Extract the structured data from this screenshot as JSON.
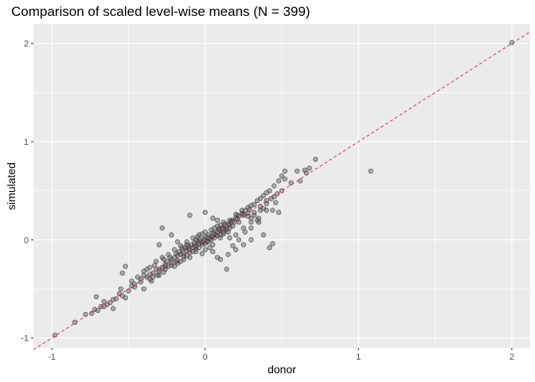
{
  "chart_data": {
    "type": "scatter",
    "title": "Comparison of scaled level-wise means (N = 399)",
    "xlabel": "donor",
    "ylabel": "simulated",
    "xlim": [
      -1.12,
      2.12
    ],
    "ylim": [
      -1.1,
      2.2
    ],
    "x_ticks": [
      -1,
      0,
      1,
      2
    ],
    "y_ticks": [
      -1,
      0,
      1,
      2
    ],
    "x_tick_labels": [
      "-1",
      "0",
      "1",
      "2"
    ],
    "y_tick_labels": [
      "-1",
      "0",
      "1",
      "2"
    ],
    "grid": true,
    "reference_line": {
      "slope": 1,
      "intercept": 0,
      "style": "dashed"
    },
    "colors": {
      "panel": "#ebebeb",
      "grid": "#ffffff",
      "point_fill": "#5a5a5a",
      "point_stroke": "#333333",
      "reference_line": "#e0506e"
    },
    "points": [
      [
        -0.98,
        -0.97
      ],
      [
        -0.85,
        -0.84
      ],
      [
        -0.78,
        -0.76
      ],
      [
        -0.74,
        -0.75
      ],
      [
        -0.72,
        -0.71
      ],
      [
        -0.71,
        -0.58
      ],
      [
        -0.68,
        -0.68
      ],
      [
        -0.66,
        -0.63
      ],
      [
        -0.64,
        -0.66
      ],
      [
        -0.6,
        -0.61
      ],
      [
        -0.6,
        -0.7
      ],
      [
        -0.56,
        -0.55
      ],
      [
        -0.55,
        -0.5
      ],
      [
        -0.52,
        -0.59
      ],
      [
        -0.48,
        -0.47
      ],
      [
        -0.54,
        -0.34
      ],
      [
        -0.52,
        -0.27
      ],
      [
        -0.46,
        -0.45
      ],
      [
        -0.42,
        -0.4
      ],
      [
        -0.4,
        -0.5
      ],
      [
        -0.38,
        -0.3
      ],
      [
        -0.36,
        -0.35
      ],
      [
        -0.34,
        -0.38
      ],
      [
        -0.33,
        -0.26
      ],
      [
        -0.31,
        -0.36
      ],
      [
        -0.3,
        -0.3
      ],
      [
        -0.28,
        -0.28
      ],
      [
        -0.27,
        -0.33
      ],
      [
        -0.26,
        -0.25
      ],
      [
        -0.25,
        -0.22
      ],
      [
        -0.24,
        -0.27
      ],
      [
        -0.22,
        -0.2
      ],
      [
        -0.2,
        -0.18
      ],
      [
        -0.19,
        -0.22
      ],
      [
        -0.18,
        -0.16
      ],
      [
        -0.17,
        -0.12
      ],
      [
        -0.16,
        -0.15
      ],
      [
        -0.15,
        -0.1
      ],
      [
        -0.14,
        -0.14
      ],
      [
        -0.13,
        -0.08
      ],
      [
        -0.12,
        -0.11
      ],
      [
        -0.11,
        -0.06
      ],
      [
        -0.1,
        -0.1
      ],
      [
        -0.09,
        -0.05
      ],
      [
        -0.08,
        -0.08
      ],
      [
        -0.07,
        -0.03
      ],
      [
        -0.06,
        -0.07
      ],
      [
        -0.05,
        -0.02
      ],
      [
        -0.04,
        -0.04
      ],
      [
        -0.03,
        0.0
      ],
      [
        -0.02,
        -0.03
      ],
      [
        -0.01,
        0.01
      ],
      [
        0.0,
        0.0
      ],
      [
        0.01,
        -0.02
      ],
      [
        0.02,
        0.02
      ],
      [
        0.03,
        0.01
      ],
      [
        0.04,
        0.03
      ],
      [
        0.05,
        0.04
      ],
      [
        0.06,
        0.06
      ],
      [
        0.07,
        0.05
      ],
      [
        0.08,
        0.08
      ],
      [
        0.09,
        0.1
      ],
      [
        0.1,
        0.09
      ],
      [
        0.11,
        0.12
      ],
      [
        0.12,
        0.11
      ],
      [
        0.13,
        0.14
      ],
      [
        0.14,
        0.12
      ],
      [
        0.15,
        0.16
      ],
      [
        0.16,
        0.15
      ],
      [
        0.17,
        0.19
      ],
      [
        0.18,
        0.2
      ],
      [
        0.19,
        0.18
      ],
      [
        0.2,
        0.22
      ],
      [
        0.21,
        0.25
      ],
      [
        0.22,
        0.24
      ],
      [
        0.24,
        0.27
      ],
      [
        0.26,
        0.3
      ],
      [
        0.28,
        0.33
      ],
      [
        0.3,
        0.35
      ],
      [
        0.32,
        0.36
      ],
      [
        0.34,
        0.4
      ],
      [
        0.36,
        0.42
      ],
      [
        0.38,
        0.45
      ],
      [
        0.4,
        0.48
      ],
      [
        0.42,
        0.5
      ],
      [
        0.45,
        0.55
      ],
      [
        0.48,
        0.6
      ],
      [
        0.5,
        0.65
      ],
      [
        0.52,
        0.62
      ],
      [
        0.56,
        0.58
      ],
      [
        0.6,
        0.7
      ],
      [
        0.65,
        0.71
      ],
      [
        0.68,
        0.73
      ],
      [
        0.72,
        0.82
      ],
      [
        0.2,
        0.05
      ],
      [
        0.25,
        0.12
      ],
      [
        0.3,
        0.18
      ],
      [
        0.35,
        0.22
      ],
      [
        0.4,
        0.3
      ],
      [
        0.46,
        0.38
      ],
      [
        0.5,
        0.5
      ],
      [
        0.52,
        0.7
      ],
      [
        0.62,
        0.6
      ],
      [
        0.66,
        0.68
      ],
      [
        0.35,
        0.18
      ],
      [
        0.42,
        -0.08
      ],
      [
        0.44,
        -0.04
      ],
      [
        0.38,
        0.05
      ],
      [
        0.3,
        0.0
      ],
      [
        0.25,
        -0.05
      ],
      [
        0.2,
        -0.1
      ],
      [
        0.15,
        -0.15
      ],
      [
        0.1,
        -0.2
      ],
      [
        0.05,
        -0.12
      ],
      [
        0.14,
        -0.3
      ],
      [
        0.08,
        -0.18
      ],
      [
        0.03,
        -0.08
      ],
      [
        -0.02,
        -0.14
      ],
      [
        -0.06,
        -0.12
      ],
      [
        -0.1,
        -0.18
      ],
      [
        -0.14,
        -0.2
      ],
      [
        -0.18,
        -0.24
      ],
      [
        -0.22,
        -0.26
      ],
      [
        -0.26,
        -0.3
      ],
      [
        -0.3,
        -0.36
      ],
      [
        -0.35,
        -0.42
      ],
      [
        -0.4,
        -0.36
      ],
      [
        -0.36,
        -0.28
      ],
      [
        -0.32,
        -0.22
      ],
      [
        -0.28,
        -0.18
      ],
      [
        -0.24,
        -0.15
      ],
      [
        -0.2,
        -0.1
      ],
      [
        -0.16,
        -0.06
      ],
      [
        -0.12,
        -0.02
      ],
      [
        -0.08,
        0.02
      ],
      [
        -0.04,
        0.05
      ],
      [
        0.0,
        0.08
      ],
      [
        0.04,
        0.1
      ],
      [
        0.08,
        0.14
      ],
      [
        0.12,
        0.18
      ],
      [
        0.16,
        0.2
      ],
      [
        0.2,
        0.26
      ],
      [
        0.24,
        0.3
      ],
      [
        0.28,
        0.27
      ],
      [
        -0.3,
        -0.05
      ],
      [
        -0.28,
        0.12
      ],
      [
        -0.22,
        0.05
      ],
      [
        -0.18,
        -0.02
      ],
      [
        -0.12,
        -0.05
      ],
      [
        -0.06,
        0.0
      ],
      [
        -0.02,
        0.06
      ],
      [
        0.02,
        0.05
      ],
      [
        0.06,
        0.12
      ],
      [
        0.1,
        0.15
      ],
      [
        -0.1,
        0.25
      ],
      [
        0.0,
        0.28
      ],
      [
        0.05,
        0.22
      ],
      [
        0.08,
        0.2
      ],
      [
        0.12,
        0.06
      ],
      [
        0.16,
        0.02
      ],
      [
        0.18,
        -0.06
      ],
      [
        0.22,
        0.0
      ],
      [
        0.26,
        0.08
      ],
      [
        0.3,
        0.12
      ],
      [
        0.32,
        0.25
      ],
      [
        0.34,
        0.2
      ],
      [
        0.36,
        0.3
      ],
      [
        0.38,
        0.32
      ],
      [
        0.4,
        0.37
      ],
      [
        0.43,
        0.42
      ],
      [
        0.45,
        0.44
      ],
      [
        0.47,
        0.47
      ],
      [
        0.44,
        0.3
      ],
      [
        0.48,
        0.28
      ],
      [
        0.3,
        0.22
      ],
      [
        0.22,
        0.18
      ],
      [
        0.18,
        0.14
      ],
      [
        0.14,
        0.1
      ],
      [
        0.1,
        0.05
      ],
      [
        0.06,
        0.02
      ],
      [
        0.02,
        -0.02
      ],
      [
        -0.02,
        -0.05
      ],
      [
        -0.06,
        -0.09
      ],
      [
        -0.1,
        -0.13
      ],
      [
        -0.14,
        -0.17
      ],
      [
        -0.18,
        -0.21
      ],
      [
        -0.22,
        -0.23
      ],
      [
        -0.26,
        -0.27
      ],
      [
        -0.3,
        -0.32
      ],
      [
        -0.34,
        -0.34
      ],
      [
        -0.38,
        -0.38
      ],
      [
        -0.42,
        -0.43
      ],
      [
        -0.46,
        -0.48
      ],
      [
        -0.5,
        -0.52
      ],
      [
        -0.54,
        -0.57
      ],
      [
        -0.58,
        -0.6
      ],
      [
        -0.62,
        -0.64
      ],
      [
        -0.66,
        -0.68
      ],
      [
        -0.7,
        -0.72
      ],
      [
        -0.27,
        -0.2
      ],
      [
        -0.23,
        -0.18
      ],
      [
        -0.19,
        -0.14
      ],
      [
        -0.15,
        -0.08
      ],
      [
        -0.11,
        -0.09
      ],
      [
        -0.07,
        -0.06
      ],
      [
        -0.03,
        -0.02
      ],
      [
        0.01,
        0.03
      ],
      [
        0.05,
        0.07
      ],
      [
        0.09,
        0.11
      ],
      [
        0.13,
        0.16
      ],
      [
        0.17,
        0.18
      ],
      [
        0.21,
        0.21
      ],
      [
        0.25,
        0.26
      ],
      [
        0.29,
        0.31
      ],
      [
        -0.2,
        -0.27
      ],
      [
        -0.16,
        -0.22
      ],
      [
        -0.12,
        -0.16
      ],
      [
        -0.08,
        -0.12
      ],
      [
        -0.04,
        -0.08
      ],
      [
        0.0,
        -0.04
      ],
      [
        0.04,
        0.0
      ],
      [
        0.08,
        0.04
      ],
      [
        0.12,
        0.08
      ],
      [
        0.16,
        0.12
      ],
      [
        -0.4,
        -0.32
      ],
      [
        -0.44,
        -0.38
      ],
      [
        -0.48,
        -0.42
      ],
      [
        -0.36,
        -0.4
      ],
      [
        -0.32,
        -0.3
      ],
      [
        0.0,
        -0.1
      ],
      [
        -0.05,
        0.03
      ],
      [
        0.05,
        -0.05
      ],
      [
        0.1,
        0.02
      ],
      [
        0.15,
        0.08
      ],
      [
        0.25,
        0.25
      ],
      [
        0.28,
        0.24
      ],
      [
        0.32,
        0.28
      ],
      [
        0.36,
        0.34
      ],
      [
        0.4,
        0.4
      ],
      [
        1.08,
        0.7
      ],
      [
        2.0,
        2.01
      ]
    ]
  }
}
